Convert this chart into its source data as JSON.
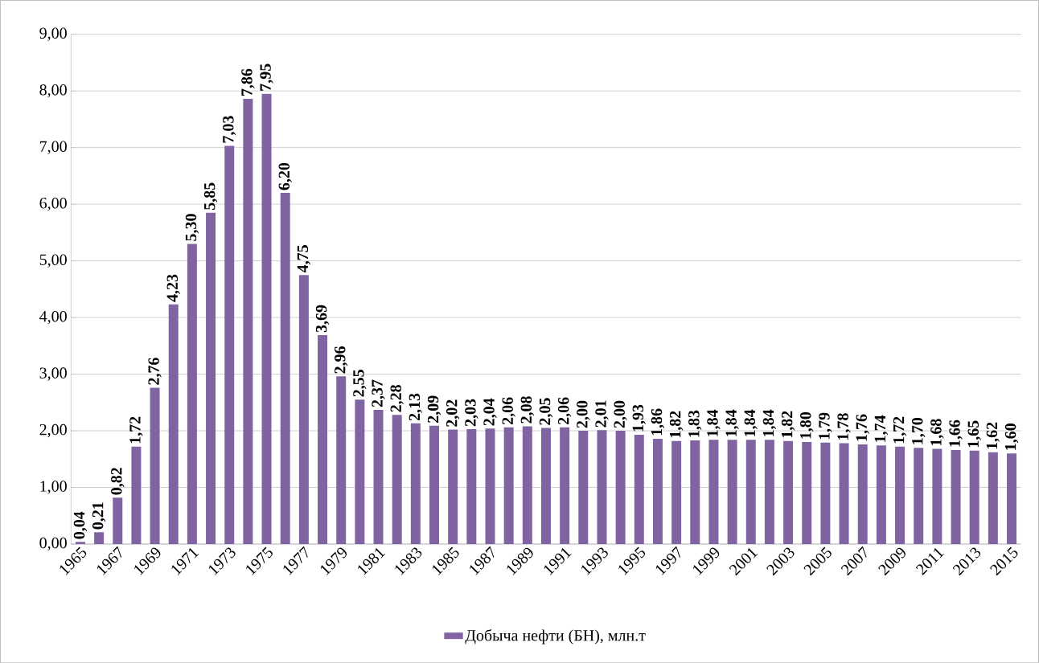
{
  "chart_data": {
    "type": "bar",
    "categories": [
      "1965",
      null,
      "1967",
      null,
      "1969",
      null,
      "1971",
      null,
      "1973",
      null,
      "1975",
      null,
      "1977",
      null,
      "1979",
      null,
      "1981",
      null,
      "1983",
      null,
      "1985",
      null,
      "1987",
      null,
      "1989",
      null,
      "1991",
      null,
      "1993",
      null,
      "1995",
      null,
      "1997",
      null,
      "1999",
      null,
      "2001",
      null,
      "2003",
      null,
      "2005",
      null,
      "2007",
      null,
      "2009",
      null,
      "2011",
      null,
      "2013",
      null,
      "2015"
    ],
    "series": [
      {
        "name": "Добыча нефти (БН), млн.т",
        "color": "#8064a2",
        "values": [
          0.04,
          0.21,
          0.82,
          1.72,
          2.76,
          4.23,
          5.3,
          5.85,
          7.03,
          7.86,
          7.95,
          6.2,
          4.75,
          3.69,
          2.96,
          2.55,
          2.37,
          2.28,
          2.13,
          2.09,
          2.02,
          2.03,
          2.04,
          2.06,
          2.08,
          2.05,
          2.06,
          2.0,
          2.01,
          2.0,
          1.93,
          1.86,
          1.82,
          1.83,
          1.84,
          1.84,
          1.84,
          1.84,
          1.82,
          1.8,
          1.79,
          1.78,
          1.76,
          1.74,
          1.72,
          1.7,
          1.68,
          1.66,
          1.65,
          1.62,
          1.6
        ],
        "value_labels": [
          "0,04",
          "0,21",
          "0,82",
          "1,72",
          "2,76",
          "4,23",
          "5,30",
          "5,85",
          "7,03",
          "7,86",
          "7,95",
          "6,20",
          "4,75",
          "3,69",
          "2,96",
          "2,55",
          "2,37",
          "2,28",
          "2,13",
          "2,09",
          "2,02",
          "2,03",
          "2,04",
          "2,06",
          "2,08",
          "2,05",
          "2,06",
          "2,00",
          "2,01",
          "2,00",
          "1,93",
          "1,86",
          "1,82",
          "1,83",
          "1,84",
          "1,84",
          "1,84",
          "1,84",
          "1,82",
          "1,80",
          "1,79",
          "1,78",
          "1,76",
          "1,74",
          "1,72",
          "1,70",
          "1,68",
          "1,66",
          "1,65",
          "1,62",
          "1,60"
        ]
      }
    ],
    "ylim": [
      0,
      9
    ],
    "yticks": [
      {
        "value": 0,
        "label": "0,00"
      },
      {
        "value": 1,
        "label": "1,00"
      },
      {
        "value": 2,
        "label": "2,00"
      },
      {
        "value": 3,
        "label": "3,00"
      },
      {
        "value": 4,
        "label": "4,00"
      },
      {
        "value": 5,
        "label": "5,00"
      },
      {
        "value": 6,
        "label": "6,00"
      },
      {
        "value": 7,
        "label": "7,00"
      },
      {
        "value": 8,
        "label": "8,00"
      },
      {
        "value": 9,
        "label": "9,00"
      }
    ],
    "grid": "y",
    "legend": "bottom"
  }
}
